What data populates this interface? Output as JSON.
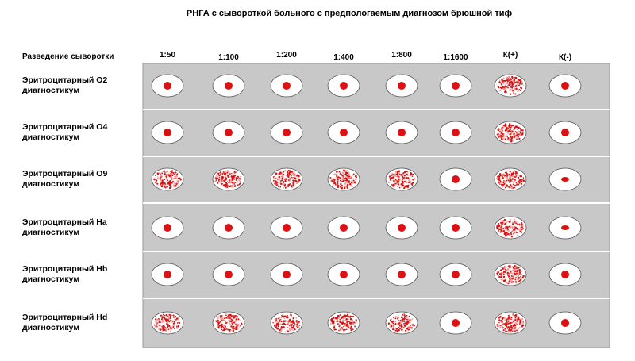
{
  "title": "РНГА с сывороткой больного с предпологаемым диагнозом брюшной тиф",
  "header_label": "Разведение сыворотки",
  "columns": [
    "1:50",
    "1:100",
    "1:200",
    "1:400",
    "1:800",
    "1:1600",
    "К(+)",
    "К(-)"
  ],
  "rows": [
    {
      "label": [
        "Эритроцитарный О2",
        "диагностикум"
      ]
    },
    {
      "label": [
        "Эритроцитарный О4",
        "диагностикум"
      ]
    },
    {
      "label": [
        "Эритроцитарный О9",
        "диагностикум"
      ]
    },
    {
      "label": [
        "Эритроцитарный На",
        "диагностикум"
      ]
    },
    {
      "label": [
        "Эритроцитарный Hb",
        "диагностикум"
      ]
    },
    {
      "label": [
        "Эритроцитарный Hd",
        "диагностикум"
      ]
    }
  ]
}
